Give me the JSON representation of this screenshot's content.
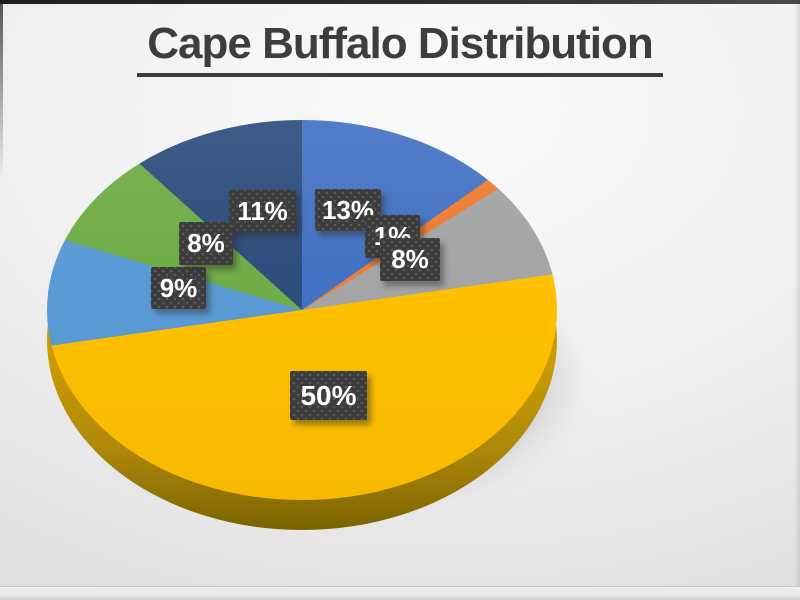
{
  "slide": {
    "title": "Cape Buffalo Distribution",
    "title_color": "#3D3D3D",
    "background_light": "#FAFAFA",
    "background_dark": "#DCDCDC",
    "top_edge_color": "#1E1E1E",
    "bottom_line_color": "#C7C7C7"
  },
  "chart_data": {
    "type": "pie",
    "title": "Cape Buffalo Distribution",
    "is_3d": true,
    "legend": "none",
    "start_angle_deg": 0,
    "direction": "clockwise",
    "slices": [
      {
        "label": "13%",
        "value": 13,
        "color": "#4472C4"
      },
      {
        "label": "1%",
        "value": 1,
        "color": "#ED7D31"
      },
      {
        "label": "8%",
        "value": 8,
        "color": "#A5A5A5"
      },
      {
        "label": "50%",
        "value": 50,
        "color": "#FFC000"
      },
      {
        "label": "9%",
        "value": 9,
        "color": "#5B9BD5"
      },
      {
        "label": "8%",
        "value": 8,
        "color": "#70AD47"
      },
      {
        "label": "11%",
        "value": 11,
        "color": "#2E4E7E"
      }
    ],
    "side_colors": [
      "#C99B00",
      "#B0880A",
      "#7A6300"
    ],
    "label_style": {
      "bg": "#3C3C3C",
      "text_color": "#FFFFFF",
      "pattern": "dotted"
    }
  }
}
